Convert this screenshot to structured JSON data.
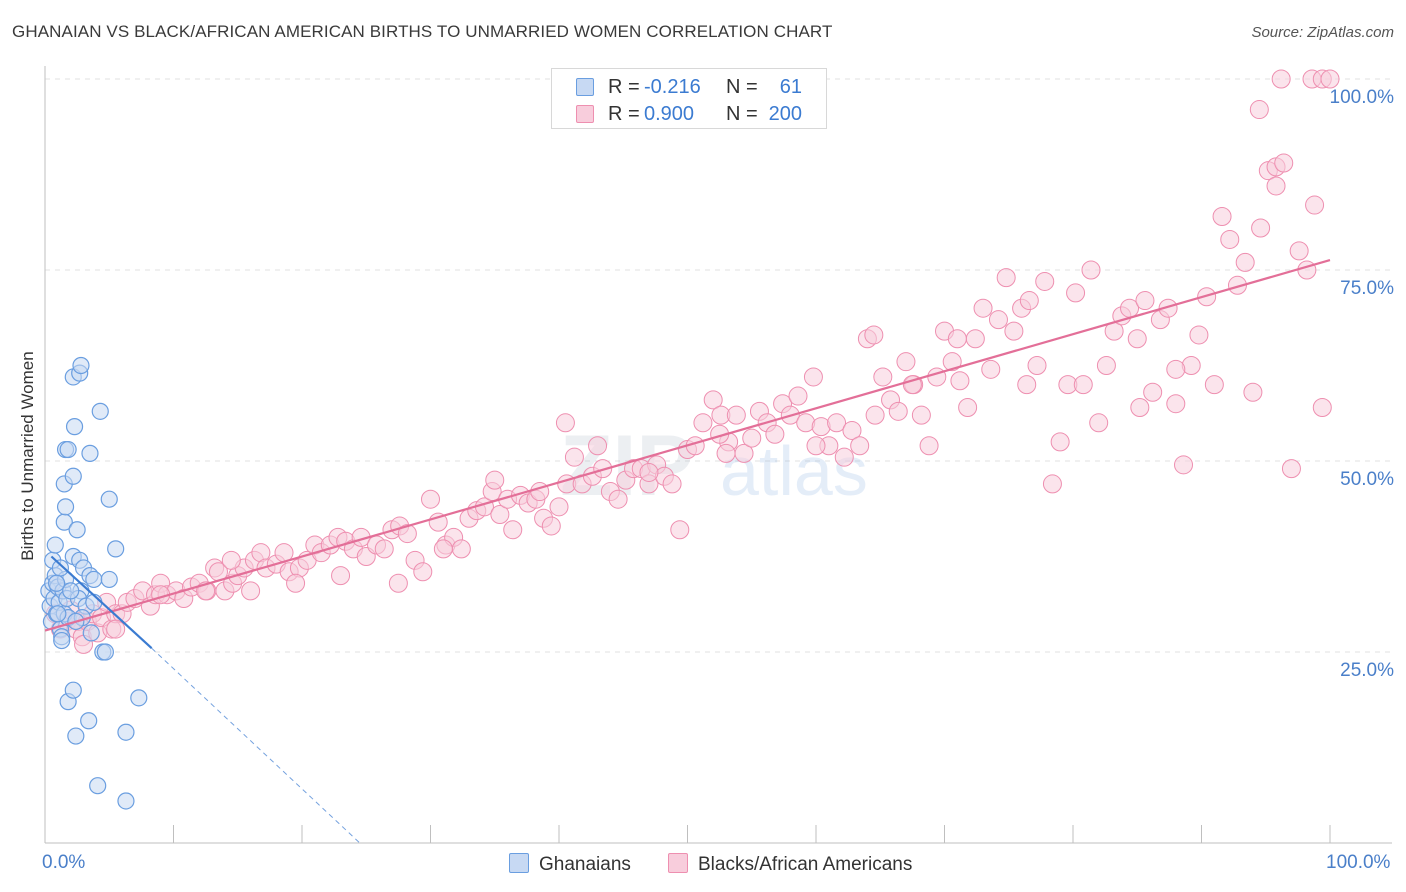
{
  "header": {
    "title": "GHANAIAN VS BLACK/AFRICAN AMERICAN BIRTHS TO UNMARRIED WOMEN CORRELATION CHART",
    "source": "Source: ZipAtlas.com"
  },
  "legend": {
    "rows": [
      {
        "r_label": "R =",
        "r_value": "-0.216",
        "n_label": "N =",
        "n_value": "61"
      },
      {
        "r_label": "R =",
        "r_value": "0.900",
        "n_label": "N =",
        "n_value": "200"
      }
    ]
  },
  "bottom_legend": {
    "ghanaians": "Ghanaians",
    "black": "Blacks/African Americans"
  },
  "axis": {
    "x_min_label": "0.0%",
    "x_max_label": "100.0%",
    "y_ticks": [
      "100.0%",
      "75.0%",
      "50.0%",
      "25.0%"
    ]
  },
  "colors": {
    "blue": "#6a9ee0",
    "blue_fill": "#c7d9f3",
    "blue_line": "#3b7bd1",
    "pink": "#ee8fb0",
    "pink_fill": "#f8cddc",
    "pink_line": "#e36f98",
    "axis_text": "#4a7fc9"
  },
  "chart_data": {
    "type": "scatter",
    "title": "GHANAIAN VS BLACK/AFRICAN AMERICAN BIRTHS TO UNMARRIED WOMEN CORRELATION CHART",
    "xlabel": "",
    "ylabel": "Births to Unmarried Women",
    "xlim": [
      0,
      100
    ],
    "ylim": [
      0,
      101
    ],
    "grid": true,
    "series": [
      {
        "name": "Ghanaians",
        "r": -0.216,
        "n": 61,
        "trend": {
          "x": [
            0.5,
            8.3
          ],
          "y": [
            37.5,
            25.5
          ],
          "dashed_to": [
            24.5,
            0
          ]
        },
        "points": [
          [
            0.3,
            33
          ],
          [
            0.4,
            31
          ],
          [
            0.5,
            29
          ],
          [
            0.6,
            34
          ],
          [
            0.7,
            32
          ],
          [
            0.8,
            35
          ],
          [
            0.9,
            30
          ],
          [
            1.0,
            33.5
          ],
          [
            1.1,
            31.5
          ],
          [
            1.2,
            28
          ],
          [
            1.3,
            27
          ],
          [
            1.4,
            33
          ],
          [
            1.5,
            30
          ],
          [
            1.6,
            34.5
          ],
          [
            1.7,
            32
          ],
          [
            1.8,
            29.5
          ],
          [
            0.6,
            37
          ],
          [
            0.8,
            39
          ],
          [
            1.5,
            42
          ],
          [
            1.6,
            44
          ],
          [
            1.5,
            47
          ],
          [
            1.6,
            51.5
          ],
          [
            1.8,
            51.5
          ],
          [
            2.2,
            48
          ],
          [
            2.3,
            54.5
          ],
          [
            2.2,
            61
          ],
          [
            2.7,
            61.5
          ],
          [
            2.8,
            62.5
          ],
          [
            3.5,
            51
          ],
          [
            4.3,
            56.5
          ],
          [
            5.0,
            45
          ],
          [
            2.5,
            41
          ],
          [
            2.2,
            37.5
          ],
          [
            2.7,
            37
          ],
          [
            3.0,
            36
          ],
          [
            3.5,
            35
          ],
          [
            2.8,
            33
          ],
          [
            2.6,
            32
          ],
          [
            3.2,
            31
          ],
          [
            2.9,
            29.5
          ],
          [
            3.8,
            34.5
          ],
          [
            3.8,
            31.5
          ],
          [
            3.6,
            27.5
          ],
          [
            4.5,
            25
          ],
          [
            4.7,
            25
          ],
          [
            5.0,
            34.5
          ],
          [
            5.5,
            38.5
          ],
          [
            1.3,
            26.5
          ],
          [
            1.8,
            18.5
          ],
          [
            2.2,
            20
          ],
          [
            2.4,
            14
          ],
          [
            3.4,
            16
          ],
          [
            4.1,
            7.5
          ],
          [
            6.3,
            14.5
          ],
          [
            6.3,
            5.5
          ],
          [
            7.3,
            19
          ],
          [
            1.0,
            30
          ],
          [
            2.0,
            33
          ],
          [
            2.4,
            29
          ],
          [
            1.2,
            36
          ],
          [
            0.9,
            34
          ]
        ]
      },
      {
        "name": "Blacks/African Americans",
        "r": 0.9,
        "n": 200,
        "trend": {
          "x": [
            0,
            100
          ],
          "y": [
            27.8,
            76.3
          ]
        },
        "points": [
          [
            0.8,
            30
          ],
          [
            1.2,
            28
          ],
          [
            1.7,
            29
          ],
          [
            2.0,
            30.5
          ],
          [
            2.4,
            28
          ],
          [
            2.6,
            29
          ],
          [
            2.9,
            27
          ],
          [
            3.3,
            29
          ],
          [
            3.7,
            30
          ],
          [
            4.1,
            27.5
          ],
          [
            4.4,
            29.5
          ],
          [
            4.8,
            31.5
          ],
          [
            5.2,
            28
          ],
          [
            5.5,
            30
          ],
          [
            6.0,
            30
          ],
          [
            6.4,
            31.5
          ],
          [
            7.0,
            32
          ],
          [
            7.6,
            33
          ],
          [
            8.2,
            31
          ],
          [
            8.6,
            32.5
          ],
          [
            9.0,
            34
          ],
          [
            9.5,
            32.5
          ],
          [
            10.2,
            33
          ],
          [
            10.8,
            32
          ],
          [
            11.4,
            33.5
          ],
          [
            12.0,
            34
          ],
          [
            12.6,
            33
          ],
          [
            13.2,
            36
          ],
          [
            13.5,
            35.5
          ],
          [
            14.0,
            33
          ],
          [
            14.6,
            34
          ],
          [
            15.0,
            35
          ],
          [
            15.5,
            36
          ],
          [
            16.3,
            37
          ],
          [
            16.8,
            38
          ],
          [
            17.2,
            36
          ],
          [
            18.0,
            36.5
          ],
          [
            18.6,
            38
          ],
          [
            19.0,
            35.5
          ],
          [
            19.8,
            36
          ],
          [
            20.4,
            37
          ],
          [
            21.0,
            39
          ],
          [
            21.5,
            38
          ],
          [
            22.2,
            39
          ],
          [
            22.8,
            40
          ],
          [
            23.4,
            39.5
          ],
          [
            24.0,
            38.5
          ],
          [
            24.6,
            40
          ],
          [
            25.0,
            37.5
          ],
          [
            25.8,
            39
          ],
          [
            26.4,
            38.5
          ],
          [
            27.0,
            41
          ],
          [
            27.6,
            41.5
          ],
          [
            28.2,
            40.5
          ],
          [
            28.8,
            37
          ],
          [
            29.4,
            35.5
          ],
          [
            30.0,
            45
          ],
          [
            30.6,
            42
          ],
          [
            31.2,
            39
          ],
          [
            31.8,
            40
          ],
          [
            32.4,
            38.5
          ],
          [
            33.0,
            42.5
          ],
          [
            33.6,
            43.5
          ],
          [
            34.2,
            44
          ],
          [
            34.8,
            46
          ],
          [
            35.4,
            43
          ],
          [
            36.0,
            45
          ],
          [
            36.4,
            41
          ],
          [
            37.0,
            45.5
          ],
          [
            37.6,
            44.5
          ],
          [
            38.2,
            45
          ],
          [
            38.8,
            42.5
          ],
          [
            39.4,
            41.5
          ],
          [
            40.0,
            44
          ],
          [
            40.6,
            47
          ],
          [
            41.2,
            50.5
          ],
          [
            41.8,
            47
          ],
          [
            42.6,
            48
          ],
          [
            43.4,
            49
          ],
          [
            44.0,
            46
          ],
          [
            44.6,
            45
          ],
          [
            45.2,
            47.5
          ],
          [
            45.8,
            49
          ],
          [
            46.4,
            49
          ],
          [
            47.0,
            47
          ],
          [
            47.6,
            49.5
          ],
          [
            48.2,
            48
          ],
          [
            48.8,
            47
          ],
          [
            49.4,
            41
          ],
          [
            50.0,
            51.5
          ],
          [
            50.6,
            52
          ],
          [
            51.2,
            55
          ],
          [
            52.0,
            58
          ],
          [
            52.6,
            56
          ],
          [
            53.2,
            52.5
          ],
          [
            53.8,
            56
          ],
          [
            54.4,
            51
          ],
          [
            55.0,
            53
          ],
          [
            55.6,
            56.5
          ],
          [
            56.2,
            55
          ],
          [
            56.8,
            53.5
          ],
          [
            57.4,
            57.5
          ],
          [
            58.0,
            56
          ],
          [
            58.6,
            58.5
          ],
          [
            59.2,
            55
          ],
          [
            59.8,
            61
          ],
          [
            60.4,
            54.5
          ],
          [
            61.0,
            52
          ],
          [
            61.6,
            55
          ],
          [
            62.2,
            50.5
          ],
          [
            62.8,
            54
          ],
          [
            63.4,
            52
          ],
          [
            64.0,
            66
          ],
          [
            64.6,
            56
          ],
          [
            65.2,
            61
          ],
          [
            65.8,
            58
          ],
          [
            66.4,
            56.5
          ],
          [
            67.0,
            63
          ],
          [
            67.6,
            60
          ],
          [
            68.2,
            56
          ],
          [
            68.8,
            52
          ],
          [
            69.4,
            61
          ],
          [
            70.0,
            67
          ],
          [
            70.6,
            63
          ],
          [
            71.2,
            60.5
          ],
          [
            71.8,
            57
          ],
          [
            72.4,
            66
          ],
          [
            73.0,
            70
          ],
          [
            73.6,
            62
          ],
          [
            74.2,
            68.5
          ],
          [
            74.8,
            74
          ],
          [
            75.4,
            67
          ],
          [
            76.0,
            70
          ],
          [
            76.6,
            71
          ],
          [
            77.2,
            62.5
          ],
          [
            77.8,
            73.5
          ],
          [
            78.4,
            47
          ],
          [
            79.0,
            52.5
          ],
          [
            79.6,
            60
          ],
          [
            80.2,
            72
          ],
          [
            80.8,
            60
          ],
          [
            81.4,
            75
          ],
          [
            82.0,
            55
          ],
          [
            82.6,
            62.5
          ],
          [
            83.2,
            67
          ],
          [
            83.8,
            69
          ],
          [
            84.4,
            70
          ],
          [
            85.0,
            66
          ],
          [
            85.6,
            71
          ],
          [
            86.2,
            59
          ],
          [
            86.8,
            68.5
          ],
          [
            87.4,
            70
          ],
          [
            88.0,
            57.5
          ],
          [
            88.6,
            49.5
          ],
          [
            89.2,
            62.5
          ],
          [
            89.8,
            66.5
          ],
          [
            90.4,
            71.5
          ],
          [
            91.0,
            60
          ],
          [
            91.6,
            82
          ],
          [
            92.2,
            79
          ],
          [
            92.8,
            73
          ],
          [
            93.4,
            76
          ],
          [
            94.0,
            59
          ],
          [
            94.6,
            80.5
          ],
          [
            95.2,
            88
          ],
          [
            95.8,
            88.5
          ],
          [
            96.4,
            89
          ],
          [
            97.0,
            49
          ],
          [
            97.6,
            77.5
          ],
          [
            98.2,
            75
          ],
          [
            98.8,
            83.5
          ],
          [
            99.4,
            57
          ],
          [
            96.2,
            100
          ],
          [
            98.6,
            100
          ],
          [
            99.4,
            100
          ],
          [
            100.0,
            100
          ],
          [
            94.5,
            96
          ],
          [
            95.8,
            86
          ],
          [
            88.0,
            62
          ],
          [
            85.2,
            57
          ],
          [
            76.4,
            60
          ],
          [
            67.5,
            60
          ],
          [
            60.0,
            52
          ],
          [
            53.0,
            51
          ],
          [
            47.0,
            48.5
          ],
          [
            43.0,
            52
          ],
          [
            38.5,
            46
          ],
          [
            35.0,
            47.5
          ],
          [
            31.0,
            38.5
          ],
          [
            27.5,
            34
          ],
          [
            23.0,
            35
          ],
          [
            19.5,
            34
          ],
          [
            16.0,
            33
          ],
          [
            12.5,
            33
          ],
          [
            9.0,
            32.5
          ],
          [
            5.5,
            28
          ],
          [
            3.0,
            26
          ],
          [
            14.5,
            37
          ],
          [
            40.5,
            55
          ],
          [
            52.5,
            53.5
          ],
          [
            64.5,
            66.5
          ],
          [
            71.0,
            66
          ]
        ]
      }
    ]
  }
}
